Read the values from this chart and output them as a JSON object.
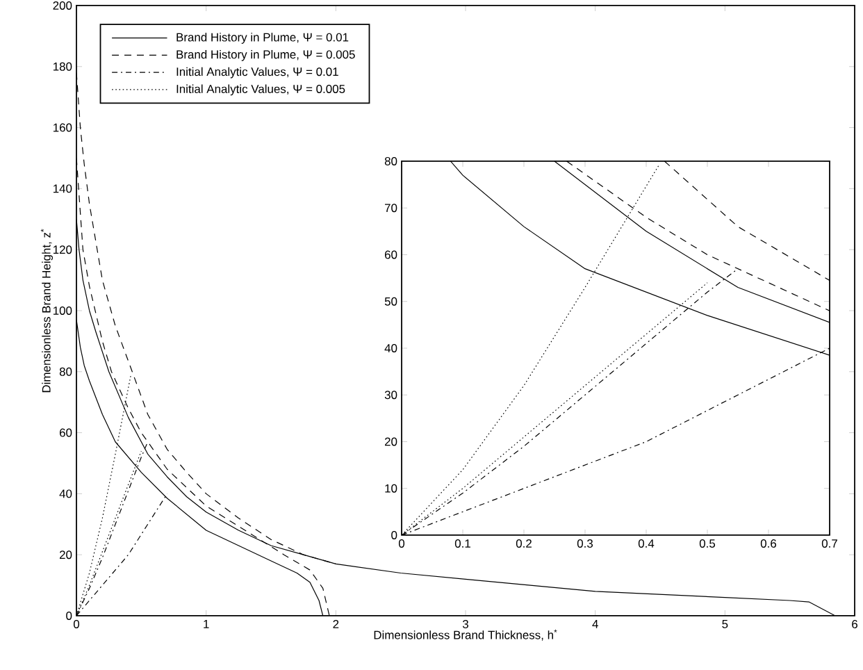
{
  "chart_data": [
    {
      "type": "line",
      "xlabel": "Dimensionless Brand Thickness, h$^{*}$",
      "ylabel": "Dimensionless Brand Height, z$^{*}$",
      "xlim": [
        0,
        6
      ],
      "ylim": [
        0,
        200
      ],
      "xticks": [
        0,
        1,
        2,
        3,
        4,
        5,
        6
      ],
      "yticks": [
        0,
        20,
        40,
        60,
        80,
        100,
        120,
        140,
        160,
        180,
        200
      ],
      "legend": "top left",
      "series": [
        {
          "name": "Brand History in Plume, Ψ = 0.01",
          "color": "#000000",
          "line_style": "solid",
          "x": [
            0,
            0.02,
            0.05,
            0.1,
            0.15,
            0.25,
            0.4,
            0.55,
            0.7,
            0.85,
            1,
            1.25,
            1.5,
            1.75,
            2,
            2.5,
            3,
            3.5,
            4,
            4.5,
            5,
            5.5,
            5.65,
            5.85
          ],
          "values": [
            130,
            120,
            110,
            100,
            93,
            80,
            65,
            53,
            45.5,
            39,
            34,
            28,
            23,
            20,
            17,
            14,
            12,
            10,
            8,
            7,
            6,
            5,
            4.5,
            0
          ]
        },
        {
          "name": "Brand History in Plume, Ψ = 0.005",
          "color": "#000000",
          "line_style": "dashed",
          "x": [
            0,
            0.03,
            0.06,
            0.1,
            0.2,
            0.3,
            0.43,
            0.55,
            0.7,
            0.85,
            1,
            1.25,
            1.5,
            1.75,
            2
          ],
          "values": [
            178,
            160,
            148,
            135,
            110,
            95,
            80,
            66,
            54.5,
            47,
            40,
            32,
            25,
            20,
            17
          ]
        },
        {
          "name": "Initial Analytic Values, Ψ = 0.01",
          "color": "#000000",
          "line_style": "dashdot",
          "x": [
            0,
            0.1,
            0.2,
            0.3,
            0.4,
            0.5,
            0.55
          ],
          "values": [
            0,
            9,
            19,
            30,
            41,
            52,
            57
          ]
        },
        {
          "name": "Initial Analytic Values, Ψ = 0.005",
          "color": "#000000",
          "line_style": "dotted",
          "x": [
            0,
            0.1,
            0.2,
            0.3,
            0.42
          ],
          "values": [
            0,
            14,
            32,
            53,
            79
          ]
        },
        {
          "color": "#000000",
          "line_style": "solid",
          "x": [
            0,
            0.03,
            0.06,
            0.1,
            0.2,
            0.3,
            0.5,
            0.7,
            1,
            1.25,
            1.5,
            1.7,
            1.8,
            1.87,
            1.9
          ],
          "values": [
            97,
            88,
            82,
            77,
            66,
            57,
            47,
            38.5,
            28,
            23,
            18,
            14,
            11,
            5,
            0
          ]
        },
        {
          "color": "#000000",
          "line_style": "dashed",
          "x": [
            0,
            0.05,
            0.1,
            0.2,
            0.27,
            0.4,
            0.5,
            0.7,
            1,
            1.3,
            1.6,
            1.8,
            1.9,
            1.95
          ],
          "values": [
            150,
            120,
            108,
            90,
            80,
            68,
            60,
            48,
            36,
            28,
            20,
            15,
            9,
            0
          ]
        },
        {
          "color": "#000000",
          "line_style": "dashdot",
          "x": [
            0,
            0.2,
            0.4,
            0.55,
            0.7
          ],
          "values": [
            0,
            10,
            20,
            30,
            40
          ]
        },
        {
          "color": "#000000",
          "line_style": "dotted",
          "x": [
            0,
            0.1,
            0.2,
            0.3,
            0.4,
            0.5
          ],
          "values": [
            0,
            10,
            21,
            32,
            43,
            54
          ]
        }
      ]
    },
    {
      "type": "line",
      "xlim": [
        0,
        0.7
      ],
      "ylim": [
        0,
        80
      ],
      "xticks": [
        0,
        0.1,
        0.2,
        0.3,
        0.4,
        0.5,
        0.6,
        0.7
      ],
      "yticks": [
        0,
        10,
        20,
        30,
        40,
        50,
        60,
        70,
        80
      ],
      "series": [
        {
          "color": "#000000",
          "line_style": "solid",
          "x": [
            0.25,
            0.4,
            0.55,
            0.7
          ],
          "values": [
            80,
            65,
            53,
            45.5
          ]
        },
        {
          "color": "#000000",
          "line_style": "dashed",
          "x": [
            0.43,
            0.55,
            0.7
          ],
          "values": [
            80,
            66,
            54.5
          ]
        },
        {
          "color": "#000000",
          "line_style": "dashdot",
          "x": [
            0,
            0.1,
            0.2,
            0.3,
            0.4,
            0.5,
            0.55
          ],
          "values": [
            0,
            9,
            19,
            30,
            41,
            52,
            57
          ]
        },
        {
          "color": "#000000",
          "line_style": "dotted",
          "x": [
            0,
            0.1,
            0.2,
            0.3,
            0.42
          ],
          "values": [
            0,
            14,
            32,
            53,
            79
          ]
        },
        {
          "color": "#000000",
          "line_style": "solid",
          "x": [
            0.08,
            0.1,
            0.2,
            0.3,
            0.5,
            0.7
          ],
          "values": [
            80,
            77,
            66,
            57,
            47,
            38.5
          ]
        },
        {
          "color": "#000000",
          "line_style": "dashed",
          "x": [
            0.27,
            0.4,
            0.5,
            0.7
          ],
          "values": [
            80,
            68,
            60,
            48
          ]
        },
        {
          "color": "#000000",
          "line_style": "dashdot",
          "x": [
            0,
            0.2,
            0.4,
            0.55,
            0.7
          ],
          "values": [
            0,
            10,
            20,
            30,
            40
          ]
        },
        {
          "color": "#000000",
          "line_style": "dotted",
          "x": [
            0,
            0.1,
            0.2,
            0.3,
            0.4,
            0.5
          ],
          "values": [
            0,
            10,
            21,
            32,
            43,
            54
          ]
        }
      ]
    }
  ]
}
